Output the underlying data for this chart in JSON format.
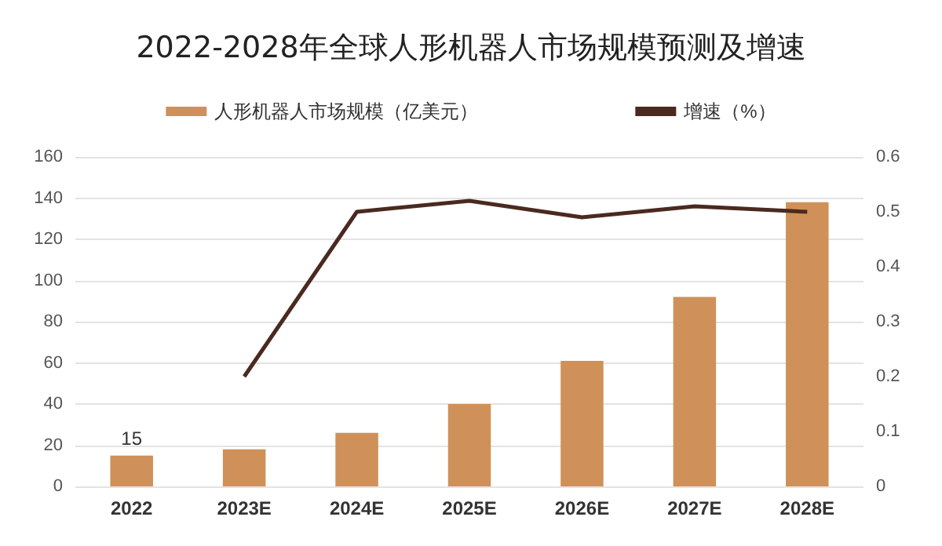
{
  "chart_data": {
    "type": "bar",
    "title": "2022-2028年全球人形机器人市场规模预测及增速",
    "categories": [
      "2022",
      "2023E",
      "2024E",
      "2025E",
      "2026E",
      "2027E",
      "2028E"
    ],
    "series": [
      {
        "name": "人形机器人市场规模（亿美元）",
        "color": "#cf9159",
        "values": [
          15,
          18,
          26,
          40,
          61,
          92,
          138
        ],
        "value_labels": [
          "15",
          null,
          null,
          null,
          null,
          null,
          null
        ]
      },
      {
        "name": "增速（%）",
        "type": "line",
        "axis": "y2",
        "color": "#4a2a20",
        "values": [
          null,
          0.2,
          0.5,
          0.52,
          0.49,
          0.51,
          0.5
        ]
      }
    ],
    "ylim": [
      0,
      160
    ],
    "yticks": [
      0,
      20,
      40,
      60,
      80,
      100,
      120,
      140,
      160
    ],
    "y2lim": [
      0,
      0.6
    ],
    "y2ticks": [
      0,
      0.1,
      0.2,
      0.3,
      0.4,
      0.5,
      0.6
    ],
    "grid": "y",
    "legend": "top",
    "marker": "none"
  }
}
